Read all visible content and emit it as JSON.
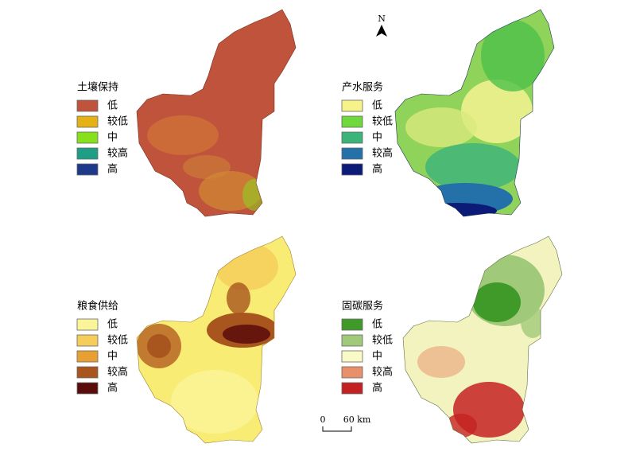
{
  "north": "N",
  "scale_bar": {
    "labels": [
      "0",
      "60 km"
    ]
  },
  "panels": [
    {
      "title": "土壤保持",
      "legend": [
        {
          "label": "低",
          "color": "#c0533c"
        },
        {
          "label": "较低",
          "color": "#e6b017"
        },
        {
          "label": "中",
          "color": "#86e01c"
        },
        {
          "label": "较高",
          "color": "#1e9e84"
        },
        {
          "label": "高",
          "color": "#1d3a8a"
        }
      ]
    },
    {
      "title": "产水服务",
      "legend": [
        {
          "label": "低",
          "color": "#f7f38b"
        },
        {
          "label": "较低",
          "color": "#6ed83c"
        },
        {
          "label": "中",
          "color": "#3bb47a"
        },
        {
          "label": "较高",
          "color": "#2470a8"
        },
        {
          "label": "高",
          "color": "#0c1a78"
        }
      ]
    },
    {
      "title": "粮食供给",
      "legend": [
        {
          "label": "低",
          "color": "#fbf59a"
        },
        {
          "label": "较低",
          "color": "#f5cd5a"
        },
        {
          "label": "中",
          "color": "#e8a033"
        },
        {
          "label": "较高",
          "color": "#a8551e"
        },
        {
          "label": "高",
          "color": "#5a0c0a"
        }
      ]
    },
    {
      "title": "固碳服务",
      "legend": [
        {
          "label": "低",
          "color": "#3f9a2a"
        },
        {
          "label": "较低",
          "color": "#a1c97a"
        },
        {
          "label": "中",
          "color": "#fafac8"
        },
        {
          "label": "较高",
          "color": "#e8906a"
        },
        {
          "label": "高",
          "color": "#c42222"
        }
      ]
    }
  ]
}
